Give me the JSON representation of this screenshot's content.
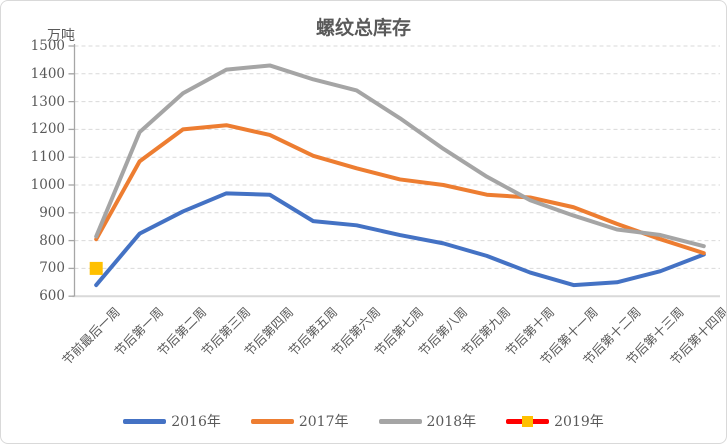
{
  "colors": {
    "text": "#595959",
    "axis": "#a6a6a6",
    "grid": "#d9d9d9",
    "x_axis_line": "#d9d9d9",
    "frame_border": "#d9d9d9"
  },
  "chart_data": {
    "type": "line",
    "title": "螺纹总库存",
    "unit_label": "万吨",
    "categories": [
      "节前最后一周",
      "节后第一周",
      "节后第二周",
      "节后第三周",
      "节后第四周",
      "节后第五周",
      "节后第六周",
      "节后第七周",
      "节后第八周",
      "节后第九周",
      "节后第十周",
      "节后第十一周",
      "节后第十二周",
      "节后第十三周",
      "节后第十四周"
    ],
    "ylim": [
      600,
      1500
    ],
    "y_tick_step": 100,
    "y_ticks": [
      600,
      700,
      800,
      900,
      1000,
      1100,
      1200,
      1300,
      1400,
      1500
    ],
    "grid": "horizontal-dashed",
    "legend_position": "bottom",
    "series": [
      {
        "name": "2016年",
        "color": "#4472C4",
        "marker": "none",
        "values": [
          640,
          825,
          905,
          970,
          965,
          870,
          855,
          820,
          790,
          745,
          685,
          640,
          650,
          690,
          750
        ]
      },
      {
        "name": "2017年",
        "color": "#ED7D31",
        "marker": "none",
        "values": [
          805,
          1085,
          1200,
          1215,
          1180,
          1105,
          1060,
          1020,
          1000,
          965,
          955,
          920,
          860,
          805,
          755
        ]
      },
      {
        "name": "2018年",
        "color": "#A5A5A5",
        "marker": "none",
        "values": [
          815,
          1190,
          1330,
          1415,
          1430,
          1380,
          1340,
          1240,
          1130,
          1030,
          945,
          890,
          840,
          820,
          780
        ]
      },
      {
        "name": "2019年",
        "color": "#FF0000",
        "marker": "square",
        "marker_color": "#FFC000",
        "values": [
          700,
          null,
          null,
          null,
          null,
          null,
          null,
          null,
          null,
          null,
          null,
          null,
          null,
          null,
          null
        ]
      }
    ]
  }
}
